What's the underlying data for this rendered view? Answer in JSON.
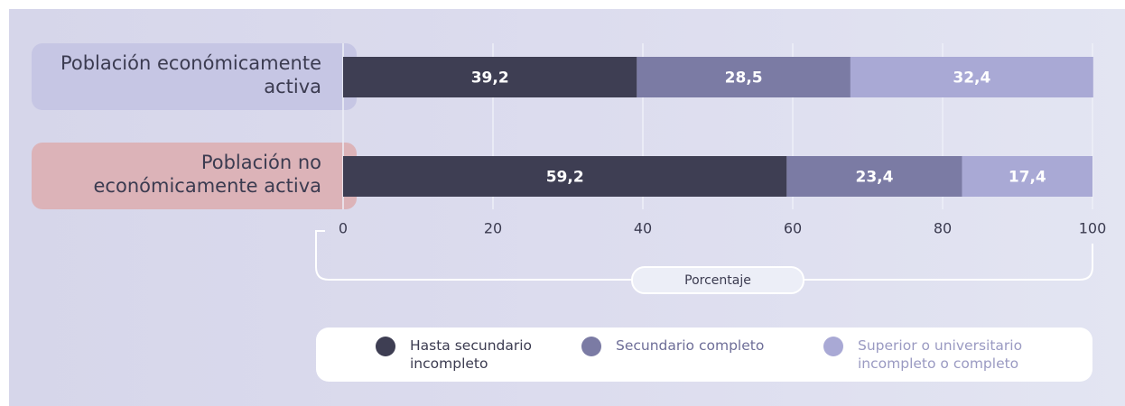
{
  "chart_data": {
    "type": "stacked-bar-horizontal",
    "categories": [
      "Población económicamente activa",
      "Población no económicamente activa"
    ],
    "series": [
      {
        "name": "Hasta secundario incompleto",
        "color": "#3e3e53",
        "values": [
          39.2,
          59.2
        ],
        "value_labels": [
          "39,2",
          "59,2"
        ]
      },
      {
        "name": "Secundario completo",
        "color": "#7b7ba4",
        "values": [
          28.5,
          23.4
        ],
        "value_labels": [
          "28,5",
          "23,4"
        ]
      },
      {
        "name": "Superior o universitario incompleto o completo",
        "color": "#a9a9d5",
        "values": [
          32.4,
          17.4
        ],
        "value_labels": [
          "32,4",
          "17,4"
        ]
      }
    ],
    "x_label": "Porcentaje",
    "xlim": [
      0,
      100
    ],
    "xticks": [
      0,
      20,
      40,
      60,
      80,
      100
    ],
    "grid": true
  }
}
